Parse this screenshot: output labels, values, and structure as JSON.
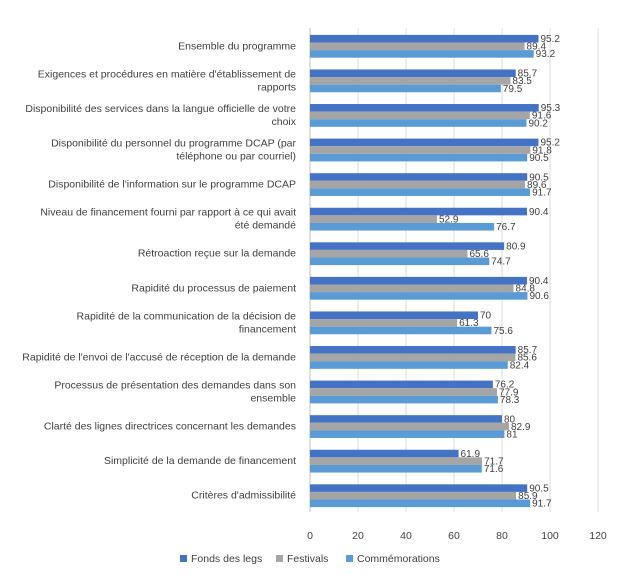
{
  "chart_data": {
    "type": "bar",
    "orientation": "horizontal",
    "categories": [
      "Ensemble du programme",
      "Exigences et procédures en matière d'établissement de rapports",
      "Disponibilité des services dans la langue officielle de votre choix",
      "Disponibilité du personnel du programme DCAP (par téléphone ou par courriel)",
      "Disponibilité de l'information sur le programme DCAP",
      "Niveau de financement fourni par rapport à ce qui avait été demandé",
      "Rétroaction reçue sur la demande",
      "Rapidité du processus de paiement",
      "Rapidité de la communication de la décision de financement",
      "Rapidité de l'envoi de l'accusé de réception de la demande",
      "Processus de présentation des demandes dans son ensemble",
      "Clarté des lignes directrices concernant les demandes",
      "Simplicité de la demande de financement",
      "Critères d'admissibilité"
    ],
    "category_lines": [
      [
        "Ensemble du programme"
      ],
      [
        "Exigences et procédures en matière d'établissement de",
        "rapports"
      ],
      [
        "Disponibilité des services dans la langue officielle de votre",
        "choix"
      ],
      [
        "Disponibilité du personnel du programme DCAP (par",
        "téléphone ou par courriel)"
      ],
      [
        "Disponibilité de l'information sur le programme DCAP"
      ],
      [
        "Niveau de financement fourni par rapport à ce qui avait",
        "été demandé"
      ],
      [
        "Rétroaction reçue sur la demande"
      ],
      [
        "Rapidité du processus de paiement"
      ],
      [
        "Rapidité de la communication de la décision de",
        "financement"
      ],
      [
        "Rapidité de l'envoi de l'accusé de réception de la demande"
      ],
      [
        "Processus de présentation des demandes dans son",
        "ensemble"
      ],
      [
        "Clarté des lignes directrices concernant les demandes"
      ],
      [
        "Simplicité de la demande de financement"
      ],
      [
        "Critères d'admissibilité"
      ]
    ],
    "series": [
      {
        "name": "Fonds des legs",
        "color": "#4472C4",
        "values": [
          95.2,
          85.7,
          95.3,
          95.2,
          90.5,
          90.4,
          80.9,
          90.4,
          70,
          85.7,
          76.2,
          80,
          61.9,
          90.5
        ],
        "labels": [
          "95.2",
          "85.7",
          "95.3",
          "95.2",
          "90.5",
          "90.4",
          "80.9",
          "90.4",
          "70",
          "85.7",
          "76.2",
          "80",
          "61.9",
          "90.5"
        ]
      },
      {
        "name": "Festivals",
        "color": "#A5A5A5",
        "values": [
          89.4,
          83.5,
          91.6,
          91.8,
          89.6,
          52.9,
          65.6,
          84.8,
          61.3,
          85.6,
          77.9,
          82.9,
          71.7,
          85.9
        ],
        "labels": [
          "89.4",
          "83.5",
          "91.6",
          "91.8",
          "89.6",
          "52.9",
          "65.6",
          "84.8",
          "61.3",
          "85.6",
          "77.9",
          "82.9",
          "71.7",
          "85.9"
        ]
      },
      {
        "name": "Commémorations",
        "color": "#5B9BD5",
        "values": [
          93.2,
          79.5,
          90.2,
          90.5,
          91.7,
          76.7,
          74.7,
          90.6,
          75.6,
          82.4,
          78.3,
          81,
          71.6,
          91.7
        ],
        "labels": [
          "93.2",
          "79.5",
          "90.2",
          "90.5",
          "91.7",
          "76.7",
          "74.7",
          "90.6",
          "75.6",
          "82.4",
          "78.3",
          "81",
          "71.6",
          "91.7"
        ]
      }
    ],
    "xlim": [
      0,
      120
    ],
    "xticks": [
      0,
      20,
      40,
      60,
      80,
      100,
      120
    ],
    "xtick_labels": [
      "0",
      "20",
      "40",
      "60",
      "80",
      "100",
      "120"
    ],
    "grid": true,
    "legend_position": "bottom"
  }
}
